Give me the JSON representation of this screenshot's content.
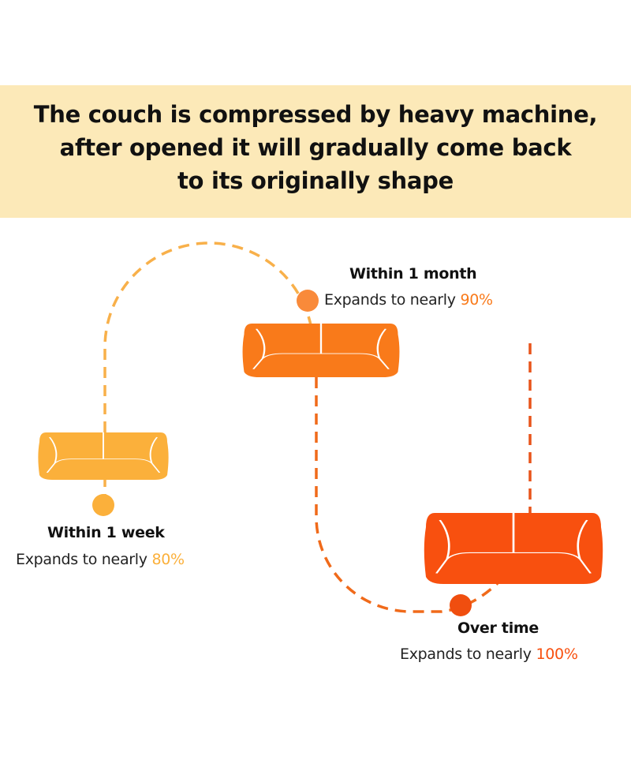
{
  "header": {
    "title_lines": [
      "The couch is compressed by heavy machine,",
      "after opened it will gradually come back",
      "to its originally shape"
    ],
    "background_color": "#fce9b8"
  },
  "stages": [
    {
      "title": "Within 1 week",
      "prefix": "Expands to nearly ",
      "percent": "80%",
      "color": "#fbb03b"
    },
    {
      "title": "Within 1 month",
      "prefix": "Expands to nearly ",
      "percent": "90%",
      "color": "#f97a1a"
    },
    {
      "title": "Over time",
      "prefix": "Expands to nearly ",
      "percent": "100%",
      "color": "#f8500f"
    }
  ]
}
